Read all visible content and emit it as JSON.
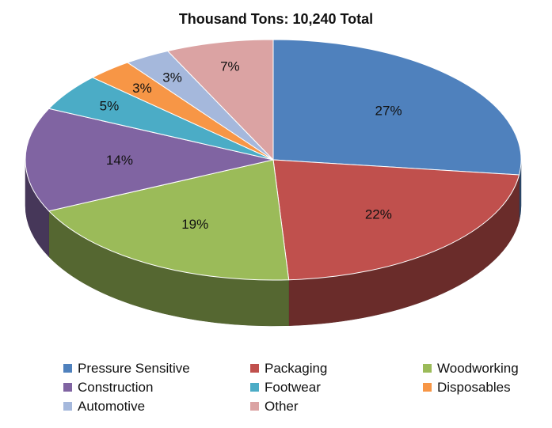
{
  "chart_data": {
    "type": "pie",
    "title": "Thousand Tons: 10,240 Total",
    "series": [
      {
        "name": "Pressure Sensitive",
        "value": 27,
        "label": "27%",
        "color": "#4f81bd"
      },
      {
        "name": "Packaging",
        "value": 22,
        "label": "22%",
        "color": "#c0504d"
      },
      {
        "name": "Woodworking",
        "value": 19,
        "label": "19%",
        "color": "#9bbb59"
      },
      {
        "name": "Construction",
        "value": 14,
        "label": "14%",
        "color": "#8064a2"
      },
      {
        "name": "Footwear",
        "value": 5,
        "label": "5%",
        "color": "#4bacc6"
      },
      {
        "name": "Disposables",
        "value": 3,
        "label": "3%",
        "color": "#f79646"
      },
      {
        "name": "Automotive",
        "value": 3,
        "label": "3%",
        "color": "#a5b8dc"
      },
      {
        "name": "Other",
        "value": 7,
        "label": "7%",
        "color": "#dba3a3"
      }
    ],
    "legend_position": "bottom",
    "style": "3d-pie"
  }
}
